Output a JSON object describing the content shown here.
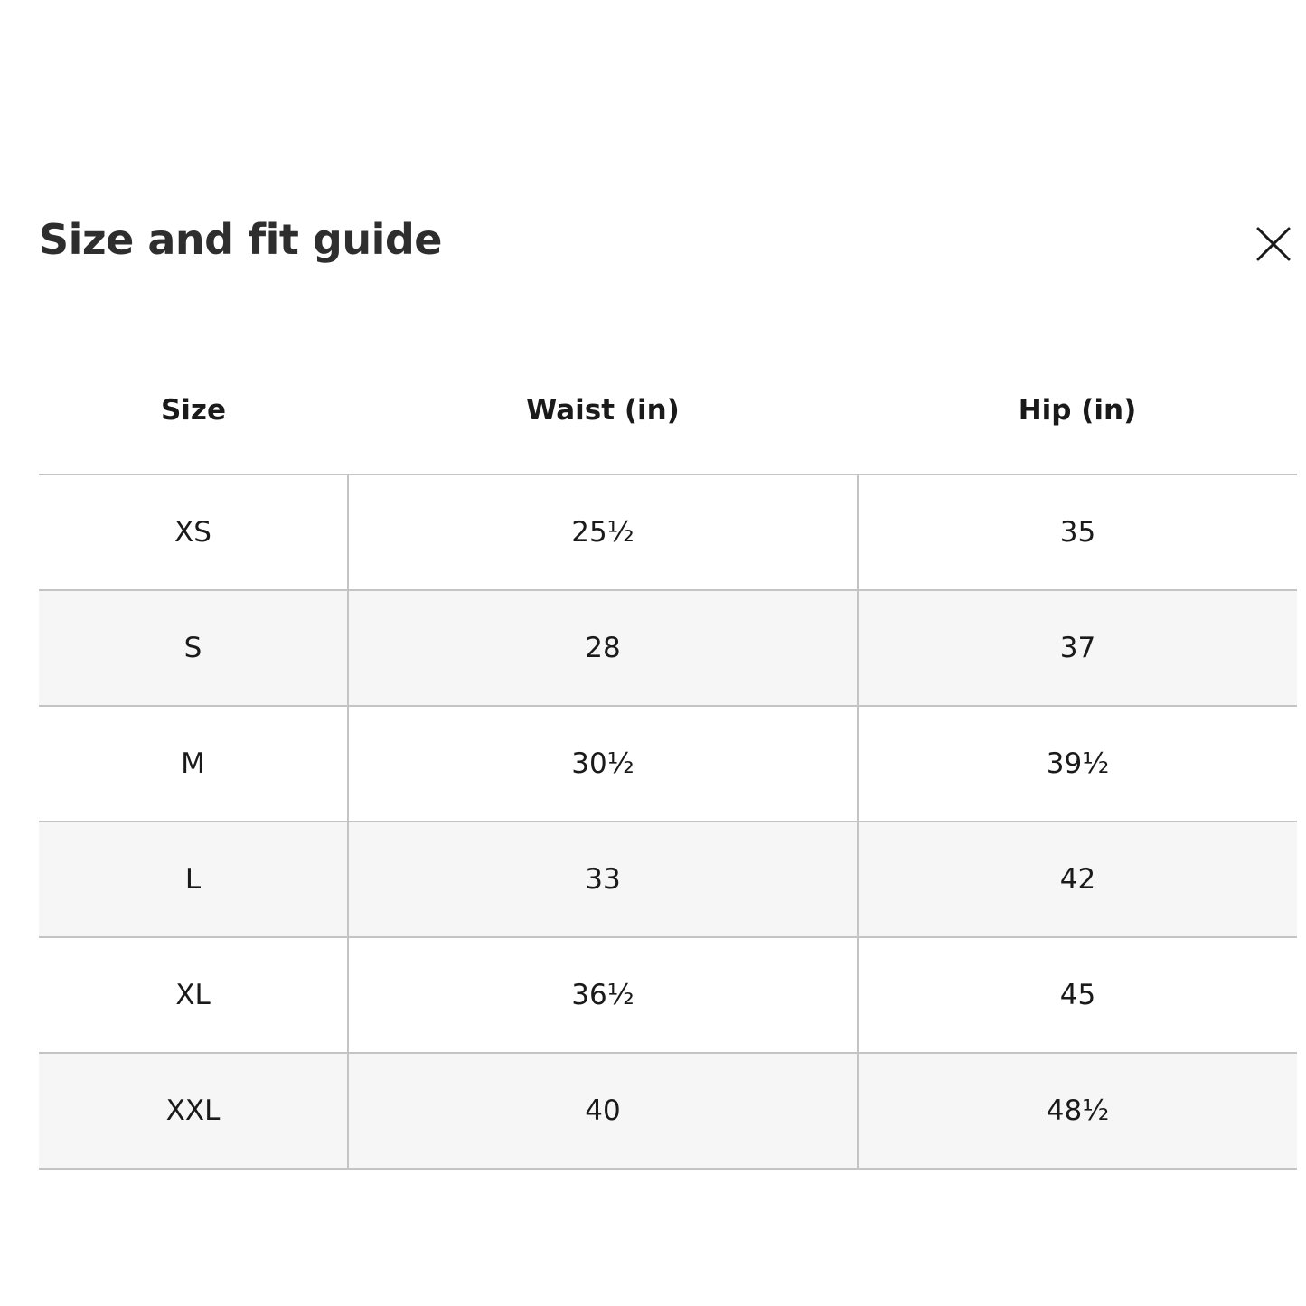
{
  "dialog": {
    "title": "Size and fit guide",
    "close_icon": "close-x-icon"
  },
  "table": {
    "headers": [
      "Size",
      "Waist (in)",
      "Hip (in)"
    ],
    "rows": [
      [
        "XS",
        "25½",
        "35"
      ],
      [
        "S",
        "28",
        "37"
      ],
      [
        "M",
        "30½",
        "39½"
      ],
      [
        "L",
        "33",
        "42"
      ],
      [
        "XL",
        "36½",
        "45"
      ],
      [
        "XXL",
        "40",
        "48½"
      ]
    ]
  }
}
